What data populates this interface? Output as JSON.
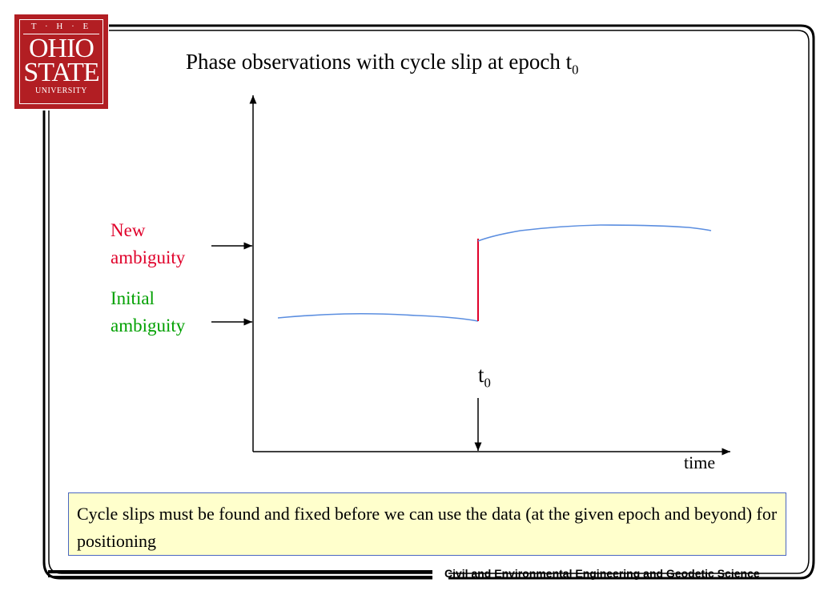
{
  "logo": {
    "line1": "T · H · E",
    "line2": "OHIO",
    "line3": "STATE",
    "line4": "UNIVERSITY"
  },
  "slide": {
    "title_main": "Phase observations with cycle slip at epoch t",
    "title_sub": "0"
  },
  "diagram": {
    "new_label_line1": "New",
    "new_label_line2": "ambiguity",
    "initial_label_line1": "Initial",
    "initial_label_line2": "ambiguity",
    "epoch_label": "t",
    "epoch_sub": "0",
    "axis_x_label": "time",
    "colors": {
      "curve": "#5b8ee0",
      "slip": "#e0002a",
      "new_label": "#e0002a",
      "initial_label": "#00a000"
    }
  },
  "note": {
    "text": "Cycle slips must be found and fixed before we can use the data (at the given epoch and beyond) for positioning"
  },
  "footer": {
    "text": "Civil and Environmental Engineering and Geodetic Science"
  }
}
